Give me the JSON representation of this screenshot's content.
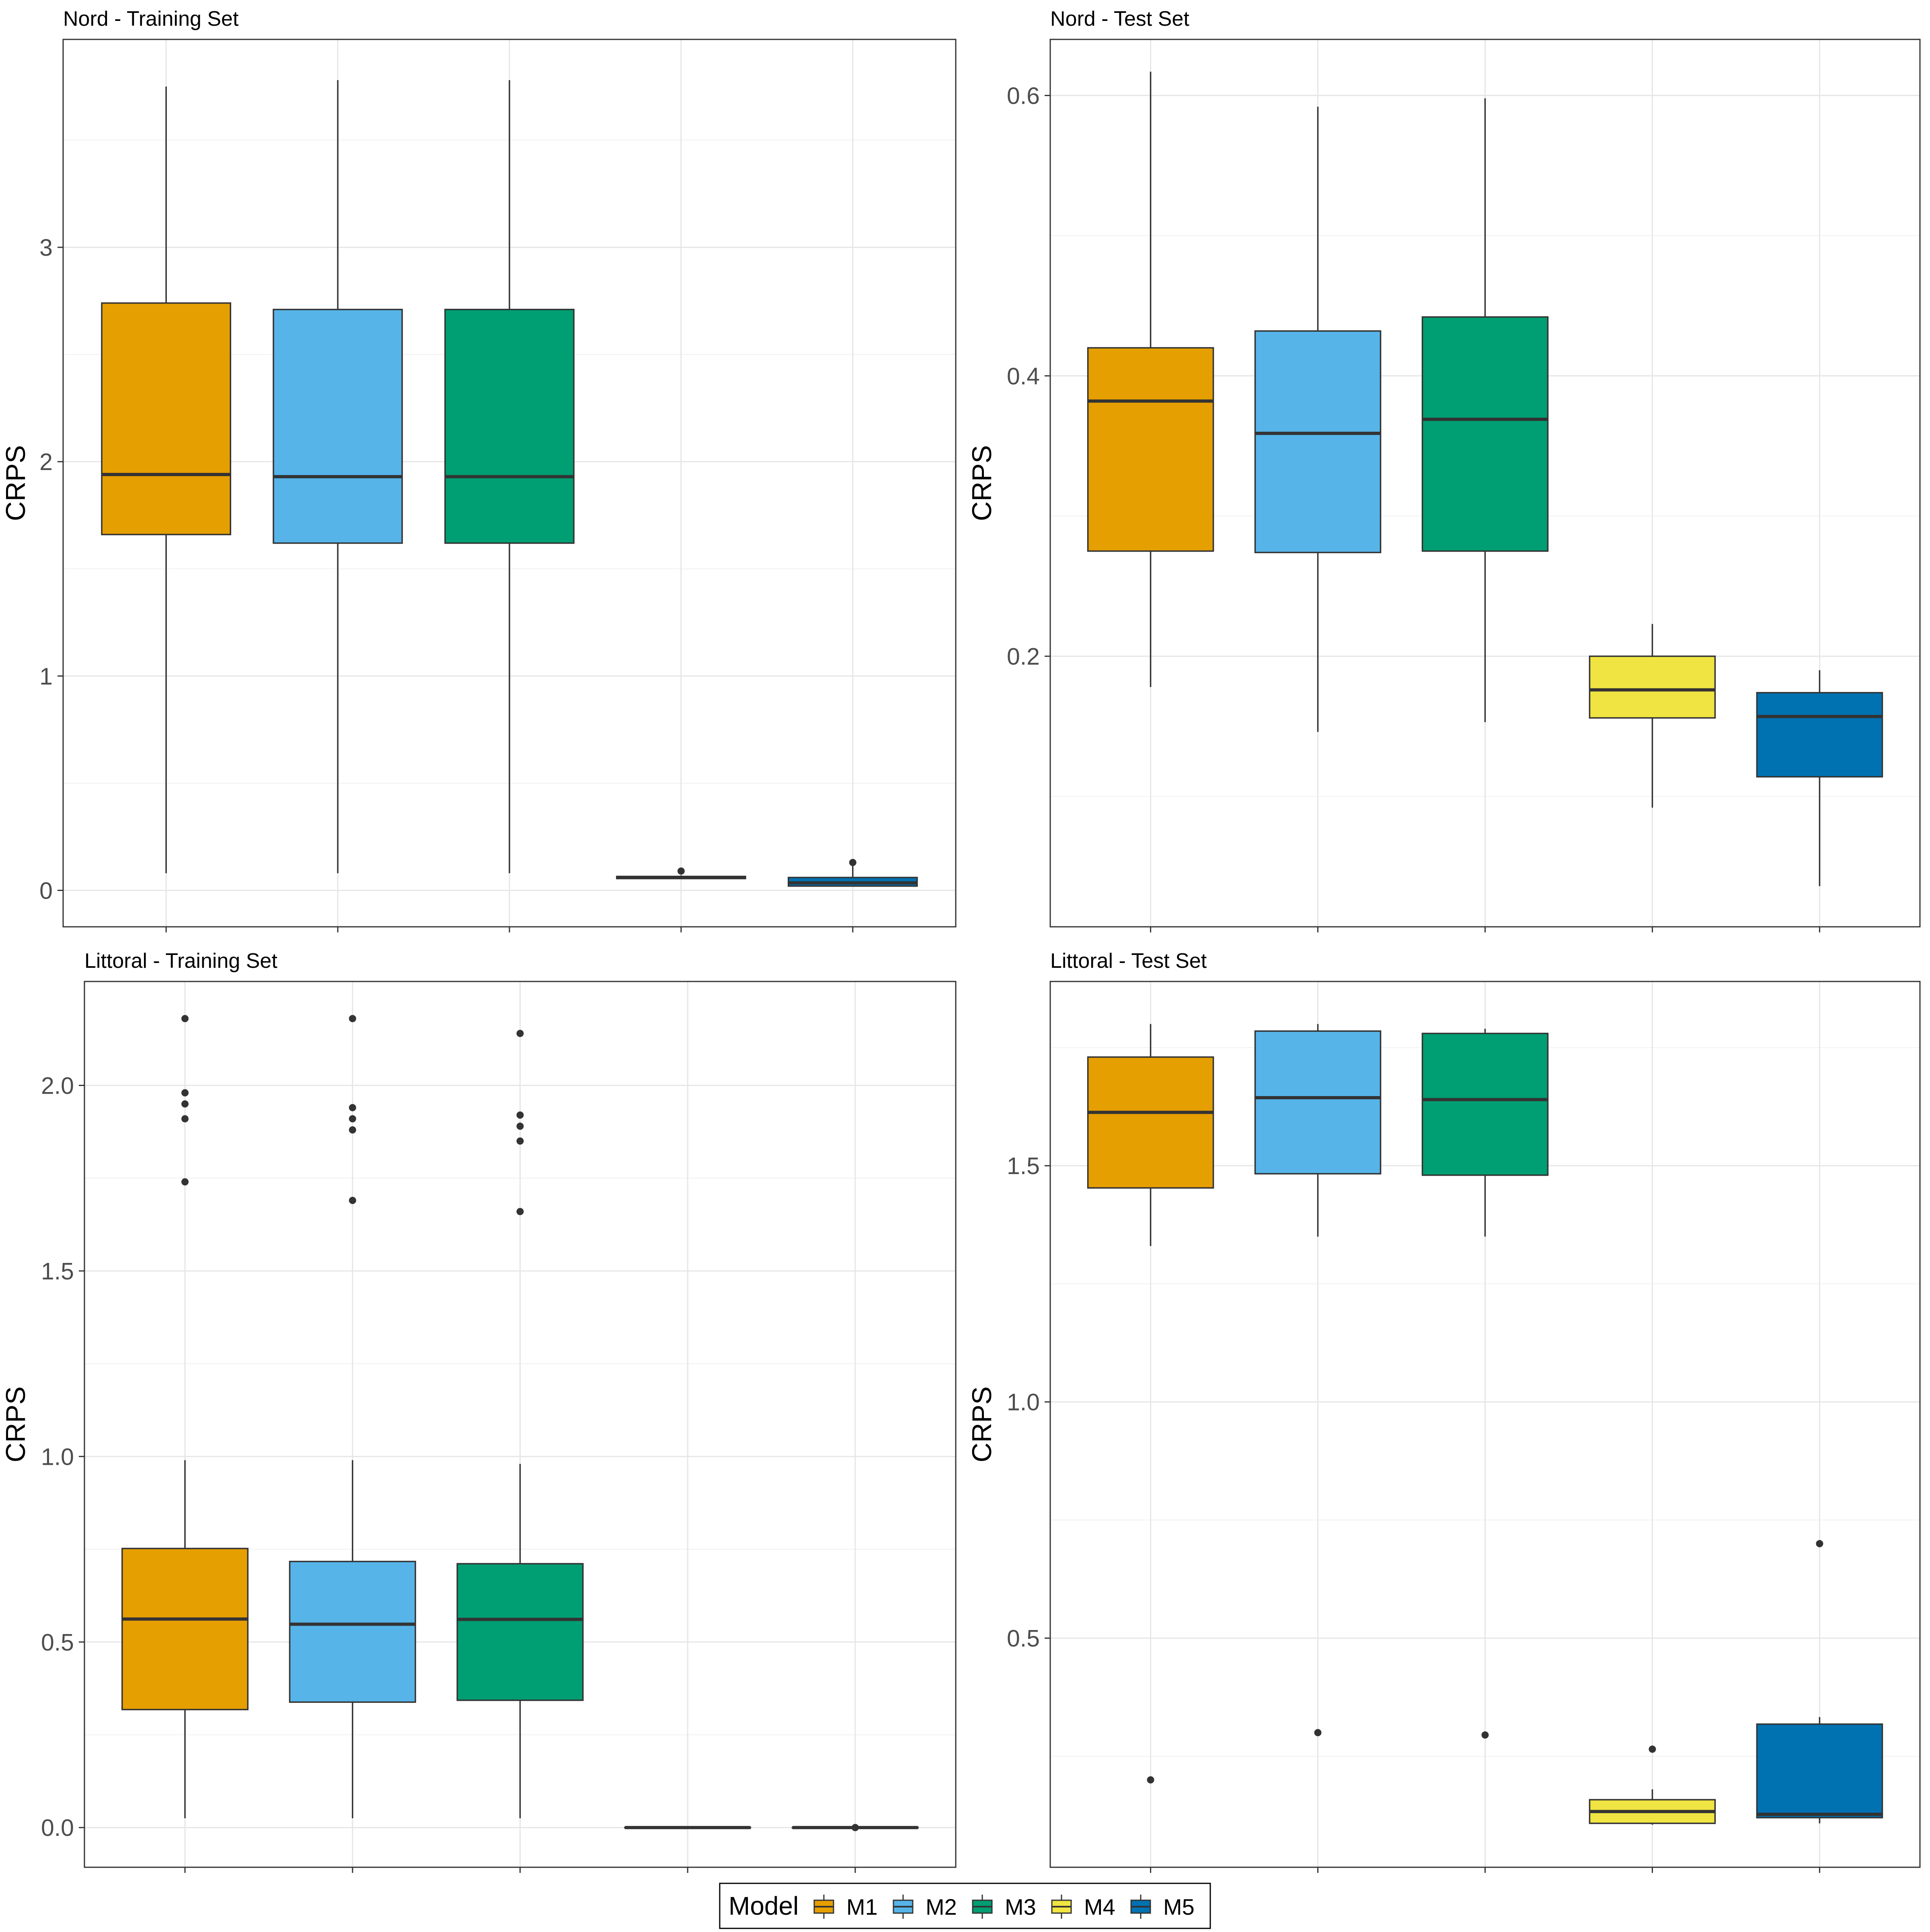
{
  "legend": {
    "title": "Model",
    "items": [
      {
        "label": "M1",
        "color": "#E69F00"
      },
      {
        "label": "M2",
        "color": "#56B4E9"
      },
      {
        "label": "M3",
        "color": "#009E73"
      },
      {
        "label": "M4",
        "color": "#F0E442"
      },
      {
        "label": "M5",
        "color": "#0072B2"
      }
    ]
  },
  "chart_data": [
    {
      "type": "box",
      "title": "Nord - Training Set",
      "ylabel": "CRPS",
      "xlabel": "",
      "ylim": [
        -0.17,
        3.97
      ],
      "yticks": [
        0,
        1,
        2,
        3
      ],
      "ytick_labels": [
        "0",
        "1",
        "2",
        "3"
      ],
      "y_minor": [
        0.5,
        1.5,
        2.5,
        3.5
      ],
      "boxes": [
        {
          "model": "M1",
          "lower": 0.08,
          "q1": 1.66,
          "median": 1.94,
          "q3": 2.74,
          "upper": 3.75,
          "outliers": []
        },
        {
          "model": "M2",
          "lower": 0.08,
          "q1": 1.62,
          "median": 1.93,
          "q3": 2.71,
          "upper": 3.78,
          "outliers": []
        },
        {
          "model": "M3",
          "lower": 0.08,
          "q1": 1.62,
          "median": 1.93,
          "q3": 2.71,
          "upper": 3.78,
          "outliers": []
        },
        {
          "model": "M4",
          "lower": 0.055,
          "q1": 0.055,
          "median": 0.06,
          "q3": 0.065,
          "upper": 0.07,
          "outliers": [
            0.09
          ]
        },
        {
          "model": "M5",
          "lower": 0.02,
          "q1": 0.02,
          "median": 0.035,
          "q3": 0.06,
          "upper": 0.13,
          "outliers": [
            0.13
          ]
        }
      ]
    },
    {
      "type": "box",
      "title": "Nord - Test Set",
      "ylabel": "CRPS",
      "xlabel": "",
      "ylim": [
        0.007,
        0.64
      ],
      "yticks": [
        0.2,
        0.4,
        0.6
      ],
      "ytick_labels": [
        "0.2",
        "0.4",
        "0.6"
      ],
      "y_minor": [
        0.1,
        0.3,
        0.5
      ],
      "boxes": [
        {
          "model": "M1",
          "lower": 0.178,
          "q1": 0.275,
          "median": 0.382,
          "q3": 0.42,
          "upper": 0.617,
          "outliers": []
        },
        {
          "model": "M2",
          "lower": 0.146,
          "q1": 0.274,
          "median": 0.359,
          "q3": 0.432,
          "upper": 0.592,
          "outliers": []
        },
        {
          "model": "M3",
          "lower": 0.153,
          "q1": 0.275,
          "median": 0.369,
          "q3": 0.442,
          "upper": 0.598,
          "outliers": []
        },
        {
          "model": "M4",
          "lower": 0.092,
          "q1": 0.156,
          "median": 0.176,
          "q3": 0.2,
          "upper": 0.223,
          "outliers": []
        },
        {
          "model": "M5",
          "lower": 0.036,
          "q1": 0.114,
          "median": 0.157,
          "q3": 0.174,
          "upper": 0.19,
          "outliers": []
        }
      ]
    },
    {
      "type": "box",
      "title": "Littoral - Training Set",
      "ylabel": "CRPS",
      "xlabel": "",
      "ylim": [
        -0.107,
        2.28
      ],
      "yticks": [
        0.0,
        0.5,
        1.0,
        1.5,
        2.0
      ],
      "ytick_labels": [
        "0.0",
        "0.5",
        "1.0",
        "1.5",
        "2.0"
      ],
      "y_minor": [
        0.25,
        0.75,
        1.25,
        1.75
      ],
      "boxes": [
        {
          "model": "M1",
          "lower": 0.025,
          "q1": 0.318,
          "median": 0.562,
          "q3": 0.752,
          "upper": 0.99,
          "outliers": [
            1.74,
            1.91,
            1.95,
            1.98,
            2.18
          ]
        },
        {
          "model": "M2",
          "lower": 0.025,
          "q1": 0.338,
          "median": 0.548,
          "q3": 0.717,
          "upper": 0.99,
          "outliers": [
            1.69,
            1.88,
            1.91,
            1.94,
            2.18
          ]
        },
        {
          "model": "M3",
          "lower": 0.025,
          "q1": 0.343,
          "median": 0.561,
          "q3": 0.711,
          "upper": 0.98,
          "outliers": [
            1.66,
            1.85,
            1.89,
            1.92,
            2.14
          ]
        },
        {
          "model": "M4",
          "lower": 0.0,
          "q1": 0.0,
          "median": 0.0,
          "q3": 0.0,
          "upper": 0.0,
          "outliers": []
        },
        {
          "model": "M5",
          "lower": 0.0,
          "q1": 0.0,
          "median": 0.0,
          "q3": 0.0,
          "upper": 0.0,
          "outliers": [
            0.0
          ]
        }
      ]
    },
    {
      "type": "box",
      "title": "Littoral - Test Set",
      "ylabel": "CRPS",
      "xlabel": "",
      "ylim": [
        0.015,
        1.89
      ],
      "yticks": [
        0.5,
        1.0,
        1.5
      ],
      "ytick_labels": [
        "0.5",
        "1.0",
        "1.5"
      ],
      "y_minor": [
        0.25,
        0.75,
        1.25,
        1.75
      ],
      "boxes": [
        {
          "model": "M1",
          "lower": 1.33,
          "q1": 1.453,
          "median": 1.613,
          "q3": 1.73,
          "upper": 1.8,
          "outliers": [
            0.2
          ]
        },
        {
          "model": "M2",
          "lower": 1.35,
          "q1": 1.483,
          "median": 1.644,
          "q3": 1.785,
          "upper": 1.8,
          "outliers": [
            0.3
          ]
        },
        {
          "model": "M3",
          "lower": 1.35,
          "q1": 1.48,
          "median": 1.64,
          "q3": 1.78,
          "upper": 1.79,
          "outliers": [
            0.295
          ]
        },
        {
          "model": "M4",
          "lower": 0.105,
          "q1": 0.108,
          "median": 0.133,
          "q3": 0.158,
          "upper": 0.18,
          "outliers": [
            0.265
          ]
        },
        {
          "model": "M5",
          "lower": 0.108,
          "q1": 0.12,
          "median": 0.127,
          "q3": 0.318,
          "upper": 0.333,
          "outliers": [
            0.7
          ]
        }
      ]
    }
  ]
}
